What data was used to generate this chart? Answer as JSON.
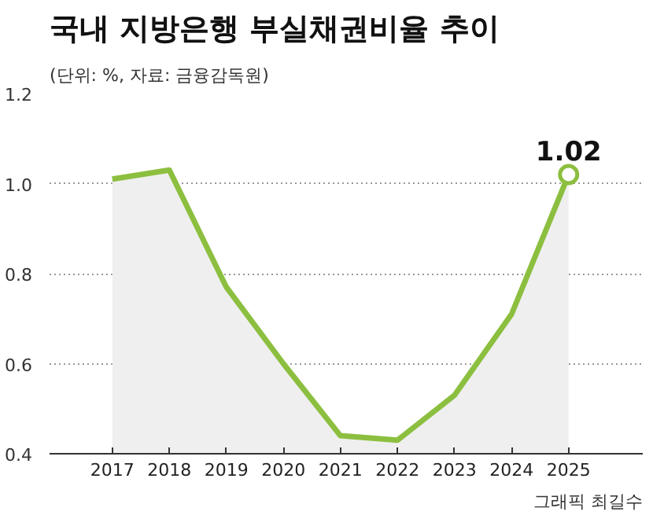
{
  "chart_data": {
    "type": "area",
    "title": "국내 지방은행 부실채권비율 추이",
    "subtitle": "(단위: %, 자료: 금융감독원)",
    "categories": [
      "2017",
      "2018",
      "2019",
      "2020",
      "2021",
      "2022",
      "2023",
      "2024",
      "2025"
    ],
    "series": [
      {
        "color": "#8cbf3f",
        "values": [
          1.01,
          1.03,
          0.77,
          0.6,
          0.44,
          0.43,
          0.53,
          0.71,
          1.02
        ],
        "value_labels": [
          null,
          null,
          null,
          null,
          null,
          null,
          null,
          null,
          "1.02"
        ]
      }
    ],
    "ylim": [
      0.4,
      1.2
    ],
    "yticks": [
      {
        "value": 0.4,
        "label": "0.4"
      },
      {
        "value": 0.6,
        "label": "0.6"
      },
      {
        "value": 0.8,
        "label": "0.8"
      },
      {
        "value": 1.0,
        "label": "1.0"
      },
      {
        "value": 1.2,
        "label": "1.2"
      }
    ],
    "grid": "y",
    "annotations": [
      "그래픽 최길수"
    ]
  }
}
